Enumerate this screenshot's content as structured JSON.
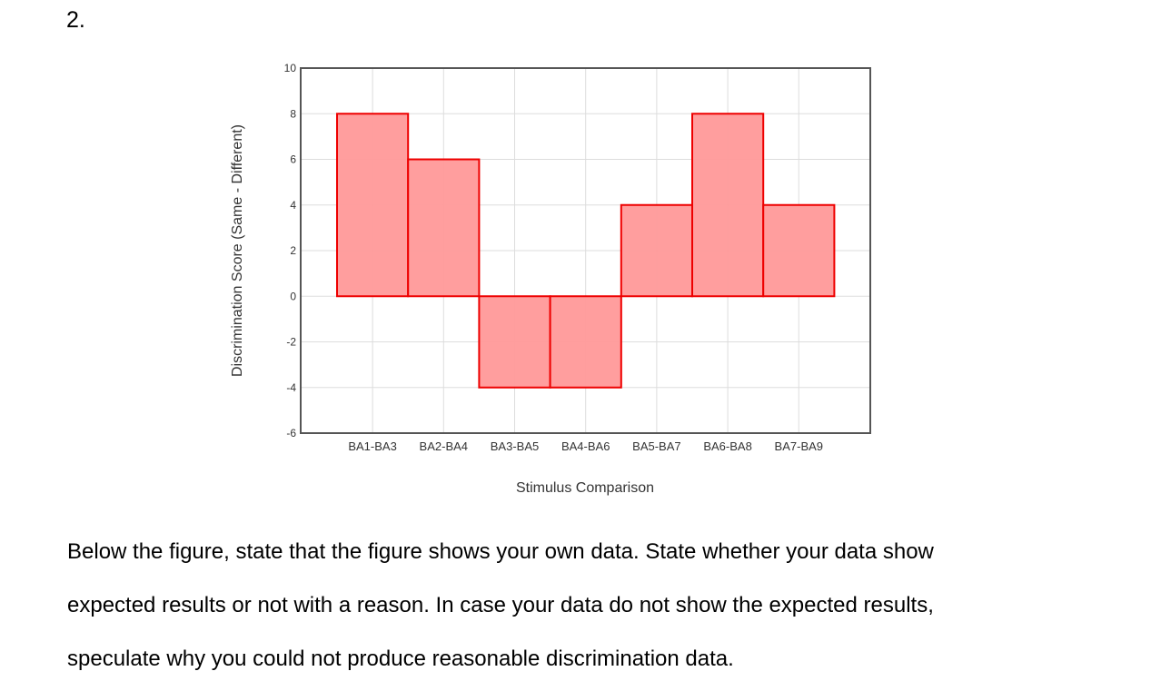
{
  "question_number": "2.",
  "chart_data": {
    "type": "bar",
    "categories": [
      "BA1-BA3",
      "BA2-BA4",
      "BA3-BA5",
      "BA4-BA6",
      "BA5-BA7",
      "BA6-BA8",
      "BA7-BA9"
    ],
    "values": [
      8,
      6,
      -4,
      -4,
      4,
      8,
      4
    ],
    "title": "",
    "xlabel": "Stimulus Comparison",
    "ylabel": "Discrimination Score (Same - Different)",
    "ylim": [
      -6,
      10
    ],
    "yticks": [
      "10",
      "8",
      "6",
      "4",
      "2",
      "0",
      "-2",
      "-4",
      "-6"
    ],
    "grid": true,
    "legend": "none",
    "bar_fill": "#ff9999",
    "bar_stroke": "#ee0000",
    "frame_color": "#555555",
    "grid_color": "#dddddd"
  },
  "instructions": {
    "line1": "Below the figure, state that the figure shows your own data. State whether your data show",
    "line2": "expected results or not with a reason. In case your data do not show the expected results,",
    "line3": "speculate why you could not produce reasonable discrimination data."
  }
}
